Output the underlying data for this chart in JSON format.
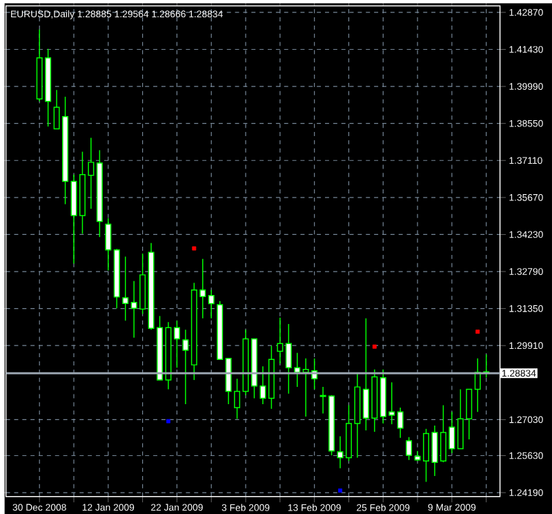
{
  "chart_data": {
    "type": "candlestick",
    "title": "EURUSD,Daily  1.28885 1.29564 1.28666 1.28834",
    "categories": [
      "30 Dec 2008",
      null,
      null,
      null,
      null,
      null,
      null,
      null,
      "12 Jan 2009",
      null,
      null,
      null,
      null,
      null,
      null,
      null,
      "22 Jan 2009",
      null,
      null,
      null,
      null,
      null,
      null,
      null,
      "3 Feb 2009",
      null,
      null,
      null,
      null,
      null,
      null,
      null,
      "13 Feb 2009",
      null,
      null,
      null,
      null,
      null,
      null,
      null,
      "25 Feb 2009",
      null,
      null,
      null,
      null,
      null,
      null,
      null,
      "9 Mar 2009",
      null,
      null,
      null,
      null
    ],
    "ohlc": [
      [
        1.395,
        1.422,
        1.3941,
        1.411
      ],
      [
        1.411,
        1.4145,
        1.3843,
        1.3941
      ],
      [
        1.3834,
        1.3985,
        1.3834,
        1.3918
      ],
      [
        1.3882,
        1.3959,
        1.3541,
        1.363
      ],
      [
        1.363,
        1.3656,
        1.331,
        1.3497
      ],
      [
        1.3497,
        1.3745,
        1.3426,
        1.3656
      ],
      [
        1.3653,
        1.3799,
        1.3523,
        1.3704
      ],
      [
        1.3701,
        1.3751,
        1.3413,
        1.3474
      ],
      [
        1.3463,
        1.3487,
        1.3283,
        1.3363
      ],
      [
        1.3363,
        1.3367,
        1.3136,
        1.318
      ],
      [
        1.3177,
        1.3337,
        1.3088,
        1.3155
      ],
      [
        1.3159,
        1.3242,
        1.3022,
        1.3136
      ],
      [
        1.3133,
        1.3349,
        1.3114,
        1.3266
      ],
      [
        1.3354,
        1.339,
        1.3053,
        1.3058
      ],
      [
        1.3061,
        1.3106,
        1.2857,
        1.2857
      ],
      [
        1.2857,
        1.3082,
        1.2821,
        1.3061
      ],
      [
        1.3061,
        1.3088,
        1.2905,
        1.3017
      ],
      [
        1.3013,
        1.3053,
        1.2763,
        1.2973
      ],
      [
        1.2916,
        1.3235,
        1.2857,
        1.3207
      ],
      [
        1.3207,
        1.3328,
        1.3097,
        1.3182
      ],
      [
        1.3186,
        1.3207,
        1.3097,
        1.3154
      ],
      [
        1.315,
        1.3164,
        1.2937,
        1.2937
      ],
      [
        1.2941,
        1.2941,
        1.2763,
        1.2813
      ],
      [
        1.275,
        1.2862,
        1.2706,
        1.2813
      ],
      [
        1.2813,
        1.3053,
        1.2798,
        1.3017
      ],
      [
        1.3017,
        1.3017,
        1.2786,
        1.2834
      ],
      [
        1.2834,
        1.291,
        1.2763,
        1.2786
      ],
      [
        1.2786,
        1.299,
        1.2745,
        1.2937
      ],
      [
        1.2969,
        1.31,
        1.2921,
        1.2999
      ],
      [
        1.2999,
        1.3075,
        1.2804,
        1.2905
      ],
      [
        1.2905,
        1.2963,
        1.283,
        1.2887
      ],
      [
        1.2887,
        1.2941,
        1.2715,
        1.2898
      ],
      [
        1.2893,
        1.2941,
        1.2821,
        1.2862
      ],
      [
        1.2797,
        1.283,
        1.2727,
        1.2793
      ],
      [
        1.2795,
        1.2798,
        1.2564,
        1.2581
      ],
      [
        1.2578,
        1.2638,
        1.2514,
        1.2555
      ],
      [
        1.2555,
        1.2759,
        1.2542,
        1.2688
      ],
      [
        1.2688,
        1.2884,
        1.2555,
        1.283
      ],
      [
        1.2821,
        1.3097,
        1.2661,
        1.2709
      ],
      [
        1.2709,
        1.2898,
        1.2656,
        1.2869
      ],
      [
        1.2866,
        1.2898,
        1.2688,
        1.2715
      ],
      [
        1.2733,
        1.2848,
        1.2685,
        1.272
      ],
      [
        1.2733,
        1.275,
        1.2632,
        1.267
      ],
      [
        1.2621,
        1.2635,
        1.2546,
        1.2564
      ],
      [
        1.256,
        1.2581,
        1.2542,
        1.2546
      ],
      [
        1.2542,
        1.2667,
        1.2461,
        1.2649
      ],
      [
        1.2653,
        1.268,
        1.2484,
        1.2537
      ],
      [
        1.2542,
        1.2759,
        1.2537,
        1.2653
      ],
      [
        1.2674,
        1.2733,
        1.2573,
        1.259
      ],
      [
        1.259,
        1.2821,
        1.259,
        1.2706
      ],
      [
        1.2706,
        1.2821,
        1.2626,
        1.2821
      ],
      [
        1.2821,
        1.2941,
        1.2733,
        1.2887
      ],
      [
        1.28885,
        1.29564,
        1.28666,
        1.28834
      ]
    ],
    "series": [
      {
        "type": "scatter",
        "color": "#ff0000",
        "values": [
          null,
          null,
          null,
          null,
          null,
          null,
          null,
          null,
          null,
          null,
          null,
          null,
          null,
          null,
          null,
          null,
          null,
          null,
          1.3369,
          null,
          null,
          null,
          null,
          null,
          null,
          null,
          null,
          null,
          null,
          null,
          null,
          null,
          null,
          null,
          null,
          null,
          null,
          null,
          null,
          1.2987,
          null,
          null,
          null,
          null,
          null,
          null,
          null,
          null,
          null,
          null,
          null,
          1.3045,
          null
        ]
      },
      {
        "type": "scatter",
        "color": "#0000ff",
        "values": [
          null,
          null,
          null,
          null,
          null,
          null,
          null,
          null,
          null,
          null,
          null,
          null,
          null,
          null,
          null,
          1.2697,
          null,
          null,
          null,
          null,
          null,
          null,
          null,
          null,
          null,
          null,
          null,
          null,
          null,
          null,
          null,
          null,
          null,
          null,
          null,
          1.2427,
          null,
          null,
          null,
          null,
          null,
          null,
          null,
          null,
          null,
          null,
          null,
          null,
          null,
          null,
          null,
          null,
          null
        ]
      }
    ],
    "marker": "square",
    "ylim": [
      1.2404,
      1.4312
    ],
    "yticks": [
      {
        "value": 1.4287,
        "label": "1.42870"
      },
      {
        "value": 1.4143,
        "label": "1.41430"
      },
      {
        "value": 1.3999,
        "label": "1.39990"
      },
      {
        "value": 1.3855,
        "label": "1.38550"
      },
      {
        "value": 1.3711,
        "label": "1.37110"
      },
      {
        "value": 1.3567,
        "label": "1.35670"
      },
      {
        "value": 1.3423,
        "label": "1.34230"
      },
      {
        "value": 1.3279,
        "label": "1.32790"
      },
      {
        "value": 1.3135,
        "label": "1.31350"
      },
      {
        "value": 1.2991,
        "label": "1.29910"
      },
      {
        "value": 1.2703,
        "label": "1.27030"
      },
      {
        "value": 1.2563,
        "label": "1.25630"
      },
      {
        "value": 1.2419,
        "label": "1.24190"
      }
    ],
    "ref_lines": [
      {
        "axis": "y",
        "value": 1.28834,
        "label": "1.28834",
        "color": "#9aa5b0"
      }
    ],
    "grid": true
  }
}
